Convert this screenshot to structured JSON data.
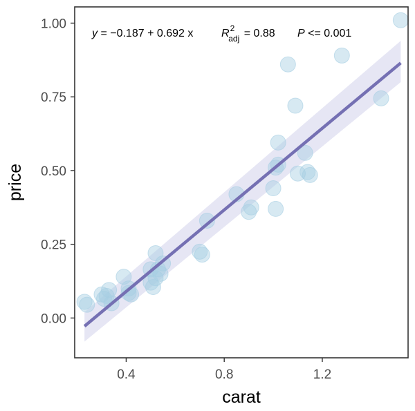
{
  "chart_data": {
    "type": "scatter",
    "title": "",
    "xlabel": "carat",
    "ylabel": "price",
    "xlim": [
      0.19,
      1.55
    ],
    "ylim": [
      -0.135,
      1.055
    ],
    "x_ticks": [
      0.4,
      0.8,
      1.2
    ],
    "x_tick_labels": [
      "0.4",
      "0.8",
      "1.2"
    ],
    "y_ticks": [
      0.0,
      0.25,
      0.5,
      0.75,
      1.0
    ],
    "y_tick_labels": [
      "0.00",
      "0.25",
      "0.50",
      "0.75",
      "1.00"
    ],
    "grid": false,
    "points": {
      "name": "observations",
      "color": "#a6cee3",
      "x": [
        0.23,
        0.24,
        0.3,
        0.31,
        0.32,
        0.33,
        0.34,
        0.39,
        0.41,
        0.41,
        0.42,
        0.5,
        0.5,
        0.51,
        0.52,
        0.52,
        0.53,
        0.54,
        0.55,
        0.7,
        0.71,
        0.73,
        0.85,
        0.9,
        0.91,
        1.0,
        1.01,
        1.01,
        1.02,
        1.02,
        1.06,
        1.09,
        1.1,
        1.13,
        1.14,
        1.15,
        1.28,
        1.44,
        1.52
      ],
      "y": [
        0.055,
        0.045,
        0.08,
        0.065,
        0.075,
        0.095,
        0.05,
        0.14,
        0.1,
        0.085,
        0.08,
        0.165,
        0.12,
        0.105,
        0.135,
        0.22,
        0.165,
        0.15,
        0.185,
        0.225,
        0.215,
        0.33,
        0.42,
        0.36,
        0.375,
        0.44,
        0.37,
        0.51,
        0.52,
        0.595,
        0.86,
        0.72,
        0.49,
        0.56,
        0.495,
        0.485,
        0.89,
        0.745,
        1.01
      ]
    },
    "fit": {
      "name": "linear fit",
      "color": "#7570b3",
      "band_color": "#dcdcf0",
      "intercept": -0.187,
      "slope": 0.692,
      "x_range": [
        0.23,
        1.52
      ],
      "band_lower": [
        -0.08,
        0.8
      ],
      "band_upper": [
        0.02,
        0.94
      ]
    },
    "annotations": {
      "equation_y": "y",
      "equation_rest": " = −0.187 + 0.692 x",
      "r2_label": "R",
      "r2_sup": "2",
      "r2_sub": "adj",
      "r2_value": " = 0.88",
      "p_label": "P",
      "p_value": " <= 0.001"
    }
  }
}
